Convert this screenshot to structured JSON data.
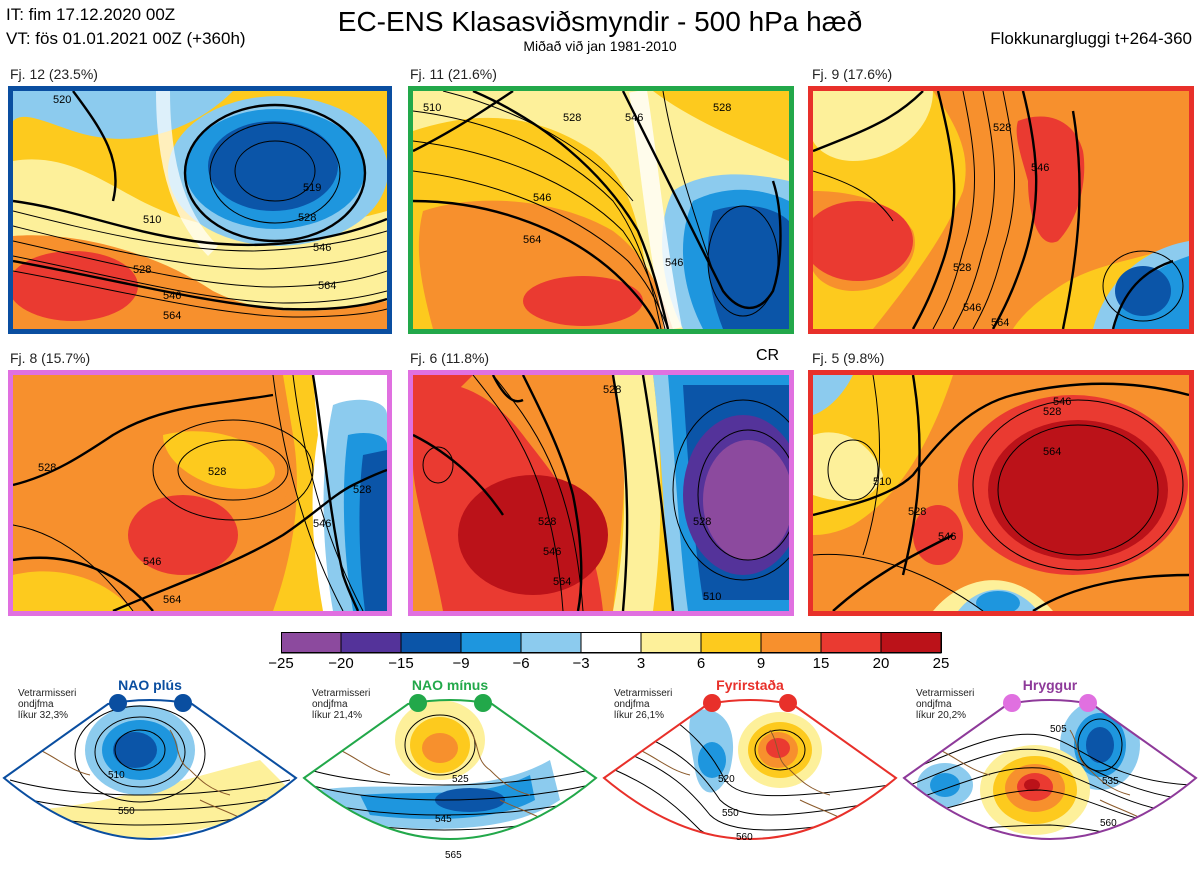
{
  "header": {
    "it_line": "IT: fim 17.12.2020 00Z",
    "vt_line": "VT: fös 01.01.2021 00Z  (+360h)",
    "title": "EC-ENS Klasasviðsmyndir - 500 hPa hæð",
    "subtitle": "Miðað við jan 1981-2010",
    "window": "Flokkunargluggi t+264-360"
  },
  "cr_label": "CR",
  "panels": [
    {
      "caption": "Fj. 12 (23.5%)",
      "border_color": "#0a4ea0",
      "regime": "NAO plús",
      "contour_labels": [
        "520",
        "510",
        "528",
        "546",
        "564",
        "519",
        "528",
        "546",
        "564"
      ]
    },
    {
      "caption": "Fj. 11 (21.6%)",
      "border_color": "#22a84a",
      "regime": "NAO mínus",
      "contour_labels": [
        "510",
        "528",
        "546",
        "564",
        "546",
        "528",
        "546"
      ]
    },
    {
      "caption": "Fj. 9 (17.6%)",
      "border_color": "#e8302a",
      "regime": "Fyrirstaða",
      "contour_labels": [
        "528",
        "546",
        "528",
        "546",
        "564"
      ]
    },
    {
      "caption": "Fj. 8 (15.7%)",
      "border_color": "#e070e0",
      "regime": "Hryggur",
      "contour_labels": [
        "528",
        "528",
        "528",
        "546",
        "546",
        "564"
      ]
    },
    {
      "caption": "Fj. 6 (11.8%)",
      "border_color": "#e070e0",
      "regime": "Hryggur",
      "contour_labels": [
        "528",
        "528",
        "546",
        "564",
        "528",
        "510"
      ]
    },
    {
      "caption": "Fj. 5 (9.8%)",
      "border_color": "#e8302a",
      "regime": "Fyrirstaða",
      "contour_labels": [
        "528",
        "546",
        "564",
        "510",
        "528",
        "546"
      ]
    }
  ],
  "colorbar": {
    "labels": [
      "−25",
      "−20",
      "−15",
      "−9",
      "−6",
      "−3",
      "3",
      "6",
      "9",
      "15",
      "20",
      "25"
    ],
    "colors": [
      "#8c4a9e",
      "#54339a",
      "#0b55a8",
      "#1e96de",
      "#8ccbee",
      "#ffffff",
      "#fdf09a",
      "#fdca1e",
      "#f7902d",
      "#ea3a31",
      "#bb1219"
    ]
  },
  "regimes": [
    {
      "title": "NAO plús",
      "note": [
        "Vetrarmisseri",
        "ondjfma",
        "líkur 32,3%"
      ],
      "dot_color": "#0a4ea0",
      "frame_color": "#0a4ea0",
      "contour_labels": [
        "510",
        "550"
      ]
    },
    {
      "title": "NAO mínus",
      "note": [
        "Vetrarmisseri",
        "ondjfma",
        "líkur 21,4%"
      ],
      "dot_color": "#22a84a",
      "frame_color": "#22a84a",
      "contour_labels": [
        "525",
        "545",
        "565"
      ]
    },
    {
      "title": "Fyrirstaða",
      "note": [
        "Vetrarmisseri",
        "ondjfma",
        "líkur 26,1%"
      ],
      "dot_color": "#e8302a",
      "frame_color": "#e8302a",
      "contour_labels": [
        "520",
        "550",
        "560"
      ]
    },
    {
      "title": "Hryggur",
      "note": [
        "Vetrarmisseri",
        "ondjfma",
        "líkur 20,2%"
      ],
      "dot_color": "#e070e0",
      "frame_color": "#8e3a9a",
      "contour_labels": [
        "505",
        "535",
        "560"
      ]
    }
  ]
}
